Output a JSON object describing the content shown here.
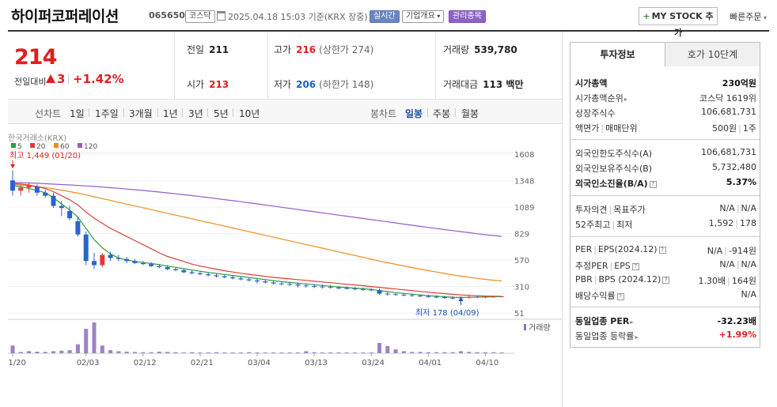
{
  "header": {
    "name": "하이퍼코퍼레이션",
    "code": "065650",
    "market": "코스닥",
    "datetime": "2025.04.18 15:03 기준(KRX 장중)",
    "realtime": "실시간",
    "company_overview": "기업개요",
    "managed": "관리종목",
    "mystock": "MY STOCK 추가",
    "quick_order": "빠른주문"
  },
  "price": {
    "current": "214",
    "change_label": "전일대비",
    "change": "3",
    "change_pct": "+1.42%",
    "prev_label": "전일",
    "prev": "211",
    "high_label": "고가",
    "high": "216",
    "upper_limit": "(상한가 274)",
    "volume_label": "거래량",
    "volume": "539,780",
    "open_label": "시가",
    "open": "213",
    "low_label": "저가",
    "low": "206",
    "lower_limit": "(하한가 148)",
    "amount_label": "거래대금",
    "amount": "113 백만"
  },
  "periods": {
    "label": "선차트",
    "items": [
      "1일",
      "1주일",
      "3개월",
      "1년",
      "3년",
      "5년",
      "10년"
    ],
    "candle_label": "봉차트",
    "candle_items": [
      "일봉",
      "주봉",
      "월봉"
    ],
    "active": "일봉"
  },
  "chart_data": {
    "type": "candlestick",
    "source_label": "한국거래소(KRX)",
    "legend": [
      {
        "name": "5",
        "color": "#2e9d3a"
      },
      {
        "name": "20",
        "color": "#e03a3a"
      },
      {
        "name": "60",
        "color": "#f08c1e"
      },
      {
        "name": "120",
        "color": "#9a5ac8"
      }
    ],
    "y_ticks": [
      1608,
      1348,
      1089,
      829,
      570,
      310,
      51
    ],
    "ylim": [
      51,
      1608
    ],
    "x_ticks": [
      "01/20",
      "02/03",
      "02/12",
      "02/21",
      "03/04",
      "03/13",
      "03/24",
      "04/01",
      "04/10"
    ],
    "high_note": "최고 1,449 (01/20)",
    "low_note": "최저 178 (04/09)",
    "volume_label": "거래량",
    "candles": [
      [
        1350,
        1449,
        1200,
        1250
      ],
      [
        1250,
        1300,
        1200,
        1280
      ],
      [
        1280,
        1330,
        1230,
        1300
      ],
      [
        1290,
        1310,
        1200,
        1230
      ],
      [
        1230,
        1260,
        1180,
        1200
      ],
      [
        1200,
        1230,
        1080,
        1100
      ],
      [
        1100,
        1150,
        1000,
        1080
      ],
      [
        1050,
        1100,
        960,
        980
      ],
      [
        950,
        1000,
        800,
        820
      ],
      [
        820,
        850,
        520,
        560
      ],
      [
        560,
        640,
        480,
        520
      ],
      [
        520,
        640,
        500,
        620
      ],
      [
        620,
        650,
        560,
        590
      ],
      [
        590,
        620,
        560,
        580
      ],
      [
        580,
        600,
        540,
        560
      ],
      [
        560,
        580,
        530,
        540
      ],
      [
        540,
        560,
        520,
        530
      ],
      [
        530,
        550,
        500,
        510
      ],
      [
        510,
        530,
        490,
        500
      ],
      [
        500,
        520,
        470,
        480
      ],
      [
        480,
        500,
        460,
        470
      ],
      [
        470,
        490,
        440,
        450
      ],
      [
        450,
        470,
        430,
        440
      ],
      [
        440,
        460,
        420,
        430
      ],
      [
        430,
        450,
        410,
        420
      ],
      [
        420,
        440,
        400,
        410
      ],
      [
        410,
        430,
        390,
        400
      ],
      [
        400,
        420,
        380,
        390
      ],
      [
        390,
        410,
        370,
        380
      ],
      [
        380,
        400,
        360,
        370
      ],
      [
        370,
        390,
        340,
        360
      ],
      [
        360,
        380,
        340,
        350
      ],
      [
        350,
        370,
        330,
        340
      ],
      [
        340,
        360,
        320,
        335
      ],
      [
        335,
        355,
        315,
        330
      ],
      [
        330,
        350,
        300,
        320
      ],
      [
        320,
        340,
        300,
        315
      ],
      [
        315,
        335,
        295,
        310
      ],
      [
        310,
        330,
        290,
        305
      ],
      [
        305,
        325,
        290,
        300
      ],
      [
        300,
        315,
        280,
        295
      ],
      [
        295,
        310,
        280,
        290
      ],
      [
        290,
        305,
        275,
        285
      ],
      [
        285,
        300,
        270,
        280
      ],
      [
        280,
        295,
        265,
        275
      ],
      [
        275,
        290,
        230,
        240
      ],
      [
        240,
        260,
        220,
        235
      ],
      [
        235,
        250,
        220,
        230
      ],
      [
        230,
        245,
        215,
        225
      ],
      [
        225,
        240,
        210,
        220
      ],
      [
        220,
        235,
        205,
        215
      ],
      [
        215,
        230,
        200,
        210
      ],
      [
        210,
        225,
        195,
        205
      ],
      [
        205,
        220,
        190,
        200
      ],
      [
        200,
        215,
        185,
        195
      ],
      [
        195,
        215,
        178,
        205
      ],
      [
        205,
        220,
        190,
        210
      ],
      [
        210,
        220,
        195,
        205
      ],
      [
        205,
        215,
        195,
        210
      ],
      [
        210,
        220,
        200,
        212
      ],
      [
        211,
        216,
        206,
        214
      ]
    ],
    "ma5": [
      1300,
      1290,
      1270,
      1250,
      1230,
      1180,
      1120,
      1060,
      990,
      880,
      770,
      690,
      630,
      590,
      570,
      555,
      545,
      535,
      525,
      510,
      498,
      485,
      472,
      460,
      448,
      438,
      428,
      418,
      408,
      398,
      388,
      378,
      368,
      358,
      350,
      342,
      335,
      328,
      320,
      313,
      306,
      300,
      294,
      288,
      282,
      270,
      260,
      250,
      242,
      235,
      228,
      221,
      215,
      210,
      205,
      203,
      204,
      206,
      208,
      210,
      212
    ],
    "ma20": [
      1320,
      1315,
      1305,
      1290,
      1270,
      1240,
      1200,
      1160,
      1110,
      1040,
      980,
      930,
      880,
      840,
      800,
      760,
      720,
      680,
      640,
      605,
      580,
      555,
      530,
      510,
      495,
      480,
      465,
      452,
      440,
      430,
      420,
      410,
      400,
      392,
      385,
      378,
      370,
      362,
      355,
      348,
      340,
      332,
      325,
      318,
      310,
      302,
      294,
      286,
      278,
      270,
      262,
      255,
      248,
      241,
      234,
      228,
      224,
      220,
      217,
      215,
      214
    ],
    "ma60": [
      1310,
      1305,
      1298,
      1290,
      1280,
      1268,
      1255,
      1240,
      1225,
      1208,
      1190,
      1172,
      1154,
      1136,
      1118,
      1100,
      1082,
      1064,
      1046,
      1028,
      1010,
      992,
      974,
      956,
      938,
      920,
      902,
      884,
      866,
      848,
      830,
      812,
      794,
      776,
      758,
      740,
      722,
      704,
      686,
      668,
      650,
      632,
      614,
      596,
      578,
      560,
      544,
      528,
      512,
      496,
      480,
      466,
      452,
      438,
      424,
      412,
      400,
      390,
      380,
      372,
      365
    ],
    "ma120": [
      1330,
      1328,
      1325,
      1322,
      1318,
      1314,
      1310,
      1306,
      1301,
      1296,
      1291,
      1285,
      1279,
      1273,
      1266,
      1259,
      1252,
      1244,
      1236,
      1228,
      1219,
      1210,
      1201,
      1192,
      1182,
      1172,
      1162,
      1152,
      1142,
      1131,
      1120,
      1109,
      1098,
      1087,
      1076,
      1065,
      1054,
      1043,
      1032,
      1021,
      1010,
      999,
      988,
      977,
      966,
      955,
      944,
      933,
      922,
      911,
      900,
      889,
      878,
      868,
      858,
      848,
      838,
      828,
      818,
      810,
      802
    ],
    "volume": [
      30,
      5,
      8,
      6,
      5,
      8,
      10,
      12,
      35,
      95,
      120,
      30,
      12,
      8,
      6,
      5,
      4,
      4,
      6,
      5,
      4,
      3,
      4,
      3,
      3,
      4,
      3,
      3,
      3,
      4,
      3,
      3,
      3,
      3,
      3,
      3,
      8,
      4,
      3,
      3,
      3,
      3,
      3,
      3,
      3,
      40,
      28,
      15,
      8,
      5,
      5,
      4,
      4,
      4,
      4,
      8,
      5,
      4,
      4,
      4,
      3
    ]
  },
  "info_tabs": [
    "투자정보",
    "호가 10단계"
  ],
  "info": {
    "s1": [
      {
        "k": "시가총액",
        "v": "230억원",
        "bold": true
      },
      {
        "k": "시가총액순위",
        "v": "코스닥 1619위",
        "arrow": true
      },
      {
        "k": "상장주식수",
        "v": "106,681,731"
      },
      {
        "k": "액면가",
        "k2": "매매단위",
        "v": "500원",
        "v2": "1주"
      }
    ],
    "s2": [
      {
        "k": "외국인한도주식수(A)",
        "v": "106,681,731"
      },
      {
        "k": "외국인보유주식수(B)",
        "v": "5,732,480"
      },
      {
        "k": "외국인소진율(B/A)",
        "v": "5.37%",
        "bold": true,
        "q": true
      }
    ],
    "s3": [
      {
        "k": "투자의견",
        "k2": "목표주가",
        "v": "N/A",
        "v2": "N/A"
      },
      {
        "k": "52주최고",
        "k2": "최저",
        "v": "1,592",
        "v2": "178"
      }
    ],
    "s4": [
      {
        "k": "PER",
        "k2": "EPS(2024.12)",
        "v": "N/A",
        "v2": "-914원",
        "q": true
      },
      {
        "k": "추정PER",
        "k2": "EPS",
        "v": "N/A",
        "v2": "N/A",
        "q": true
      },
      {
        "k": "PBR",
        "k2": "BPS (2024.12)",
        "v": "1.30배",
        "v2": "164원",
        "q": true
      },
      {
        "k": "배당수익률",
        "v": "N/A",
        "q": true
      }
    ],
    "s5": [
      {
        "k": "동일업종 PER",
        "v": "-32.23배",
        "arrow": true,
        "bold": true
      },
      {
        "k": "동일업종 등락률",
        "v": "+1.99%",
        "arrow": true,
        "red": true
      }
    ]
  }
}
